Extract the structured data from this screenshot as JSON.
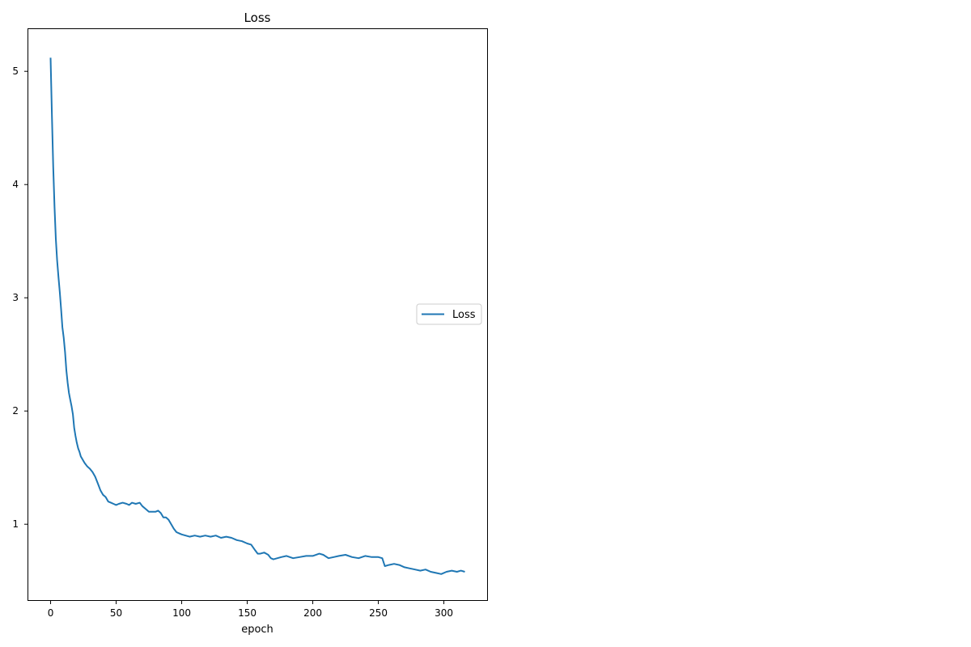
{
  "chart_data": {
    "type": "line",
    "title": "Loss",
    "xlabel": "epoch",
    "ylabel": "",
    "xlim": [
      -17,
      333
    ],
    "ylim": [
      0.33,
      5.38
    ],
    "x_ticks": [
      0,
      50,
      100,
      150,
      200,
      250,
      300
    ],
    "y_ticks": [
      1,
      2,
      3,
      4,
      5
    ],
    "grid": false,
    "legend_position": "center-right",
    "series": [
      {
        "name": "Loss",
        "color": "#1f77b4",
        "points": [
          [
            0,
            5.12
          ],
          [
            1,
            4.6
          ],
          [
            2,
            4.15
          ],
          [
            3,
            3.8
          ],
          [
            4,
            3.52
          ],
          [
            5,
            3.33
          ],
          [
            6,
            3.18
          ],
          [
            7,
            3.05
          ],
          [
            8,
            2.9
          ],
          [
            9,
            2.74
          ],
          [
            10,
            2.65
          ],
          [
            11,
            2.52
          ],
          [
            12,
            2.36
          ],
          [
            13,
            2.25
          ],
          [
            14,
            2.16
          ],
          [
            15,
            2.1
          ],
          [
            16,
            2.04
          ],
          [
            17,
            1.97
          ],
          [
            18,
            1.85
          ],
          [
            19,
            1.78
          ],
          [
            20,
            1.72
          ],
          [
            21,
            1.67
          ],
          [
            22,
            1.64
          ],
          [
            23,
            1.6
          ],
          [
            24,
            1.58
          ],
          [
            25,
            1.56
          ],
          [
            26,
            1.54
          ],
          [
            28,
            1.51
          ],
          [
            30,
            1.49
          ],
          [
            32,
            1.46
          ],
          [
            34,
            1.42
          ],
          [
            36,
            1.36
          ],
          [
            38,
            1.3
          ],
          [
            40,
            1.26
          ],
          [
            42,
            1.24
          ],
          [
            44,
            1.2
          ],
          [
            46,
            1.19
          ],
          [
            48,
            1.18
          ],
          [
            50,
            1.17
          ],
          [
            52,
            1.18
          ],
          [
            55,
            1.19
          ],
          [
            58,
            1.18
          ],
          [
            60,
            1.17
          ],
          [
            62,
            1.19
          ],
          [
            65,
            1.18
          ],
          [
            68,
            1.19
          ],
          [
            70,
            1.16
          ],
          [
            72,
            1.14
          ],
          [
            75,
            1.11
          ],
          [
            78,
            1.11
          ],
          [
            80,
            1.11
          ],
          [
            82,
            1.12
          ],
          [
            84,
            1.1
          ],
          [
            86,
            1.06
          ],
          [
            88,
            1.06
          ],
          [
            90,
            1.04
          ],
          [
            92,
            1.0
          ],
          [
            94,
            0.96
          ],
          [
            96,
            0.93
          ],
          [
            98,
            0.92
          ],
          [
            100,
            0.91
          ],
          [
            103,
            0.9
          ],
          [
            106,
            0.89
          ],
          [
            110,
            0.9
          ],
          [
            114,
            0.89
          ],
          [
            118,
            0.9
          ],
          [
            122,
            0.89
          ],
          [
            126,
            0.9
          ],
          [
            130,
            0.88
          ],
          [
            134,
            0.89
          ],
          [
            138,
            0.88
          ],
          [
            142,
            0.86
          ],
          [
            146,
            0.85
          ],
          [
            150,
            0.83
          ],
          [
            153,
            0.82
          ],
          [
            156,
            0.77
          ],
          [
            158,
            0.74
          ],
          [
            160,
            0.74
          ],
          [
            163,
            0.75
          ],
          [
            166,
            0.73
          ],
          [
            168,
            0.7
          ],
          [
            170,
            0.69
          ],
          [
            173,
            0.7
          ],
          [
            176,
            0.71
          ],
          [
            180,
            0.72
          ],
          [
            185,
            0.7
          ],
          [
            190,
            0.71
          ],
          [
            195,
            0.72
          ],
          [
            200,
            0.72
          ],
          [
            205,
            0.74
          ],
          [
            208,
            0.73
          ],
          [
            212,
            0.7
          ],
          [
            216,
            0.71
          ],
          [
            220,
            0.72
          ],
          [
            225,
            0.73
          ],
          [
            230,
            0.71
          ],
          [
            235,
            0.7
          ],
          [
            240,
            0.72
          ],
          [
            245,
            0.71
          ],
          [
            250,
            0.71
          ],
          [
            253,
            0.7
          ],
          [
            255,
            0.63
          ],
          [
            258,
            0.64
          ],
          [
            262,
            0.65
          ],
          [
            266,
            0.64
          ],
          [
            270,
            0.62
          ],
          [
            274,
            0.61
          ],
          [
            278,
            0.6
          ],
          [
            282,
            0.59
          ],
          [
            286,
            0.6
          ],
          [
            290,
            0.58
          ],
          [
            294,
            0.57
          ],
          [
            298,
            0.56
          ],
          [
            302,
            0.58
          ],
          [
            306,
            0.59
          ],
          [
            310,
            0.58
          ],
          [
            313,
            0.59
          ],
          [
            316,
            0.58
          ]
        ]
      }
    ]
  }
}
